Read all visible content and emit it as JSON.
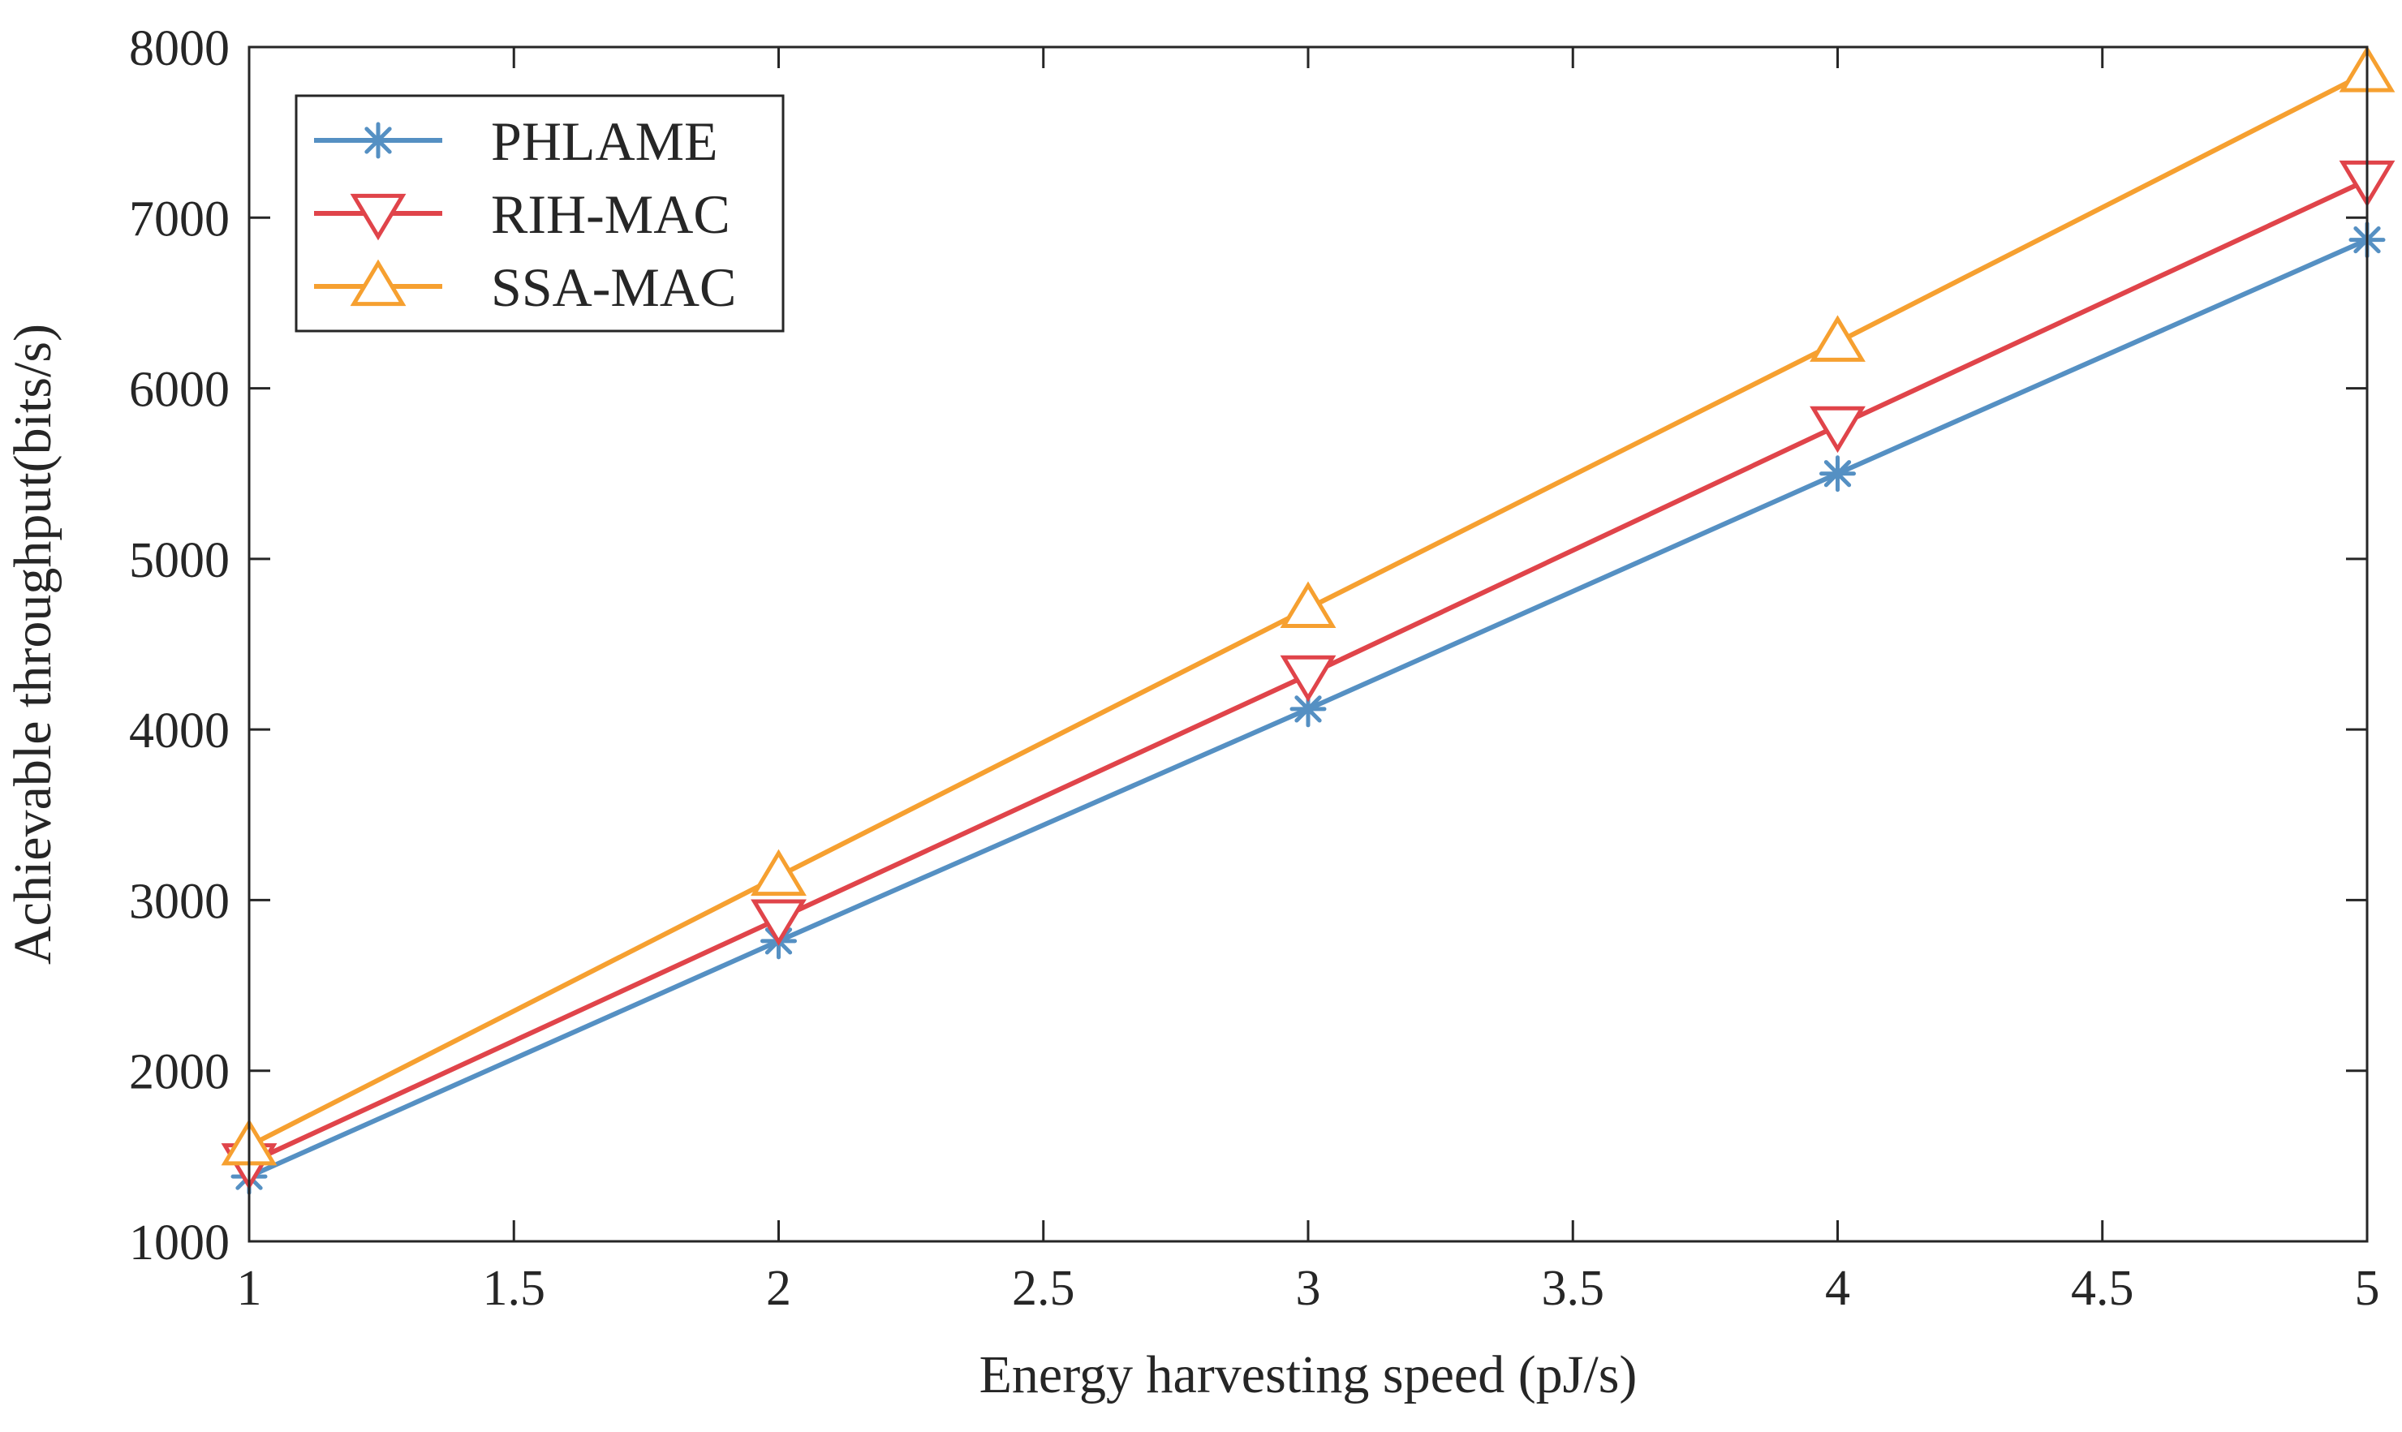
{
  "chart_data": {
    "type": "line",
    "title": "",
    "xlabel": "Energy harvesting speed (pJ/s)",
    "ylabel": "Achievable throughput(bits/s)",
    "xlim": [
      1,
      5
    ],
    "ylim": [
      1000,
      8000
    ],
    "x_ticks": [
      1,
      1.5,
      2,
      2.5,
      3,
      3.5,
      4,
      4.5,
      5
    ],
    "x_tick_labels": [
      "1",
      "1.5",
      "2",
      "2.5",
      "3",
      "3.5",
      "4",
      "4.5",
      "5"
    ],
    "y_ticks": [
      1000,
      2000,
      3000,
      4000,
      5000,
      6000,
      7000,
      8000
    ],
    "y_tick_labels": [
      "1000",
      "2000",
      "3000",
      "4000",
      "5000",
      "6000",
      "7000",
      "8000"
    ],
    "grid": false,
    "legend_position": "top-left",
    "x": [
      1,
      2,
      3,
      4,
      5
    ],
    "series": [
      {
        "name": "PHLAME",
        "color": "#5590C3",
        "marker": "asterisk",
        "values": [
          1380,
          2760,
          4120,
          5500,
          6870
        ]
      },
      {
        "name": "RIH-MAC",
        "color": "#E0444A",
        "marker": "triangle-down",
        "values": [
          1460,
          2890,
          4320,
          5780,
          7220
        ]
      },
      {
        "name": "SSA-MAC",
        "color": "#F6A030",
        "marker": "triangle-up",
        "values": [
          1560,
          3140,
          4710,
          6270,
          7850
        ]
      }
    ]
  }
}
